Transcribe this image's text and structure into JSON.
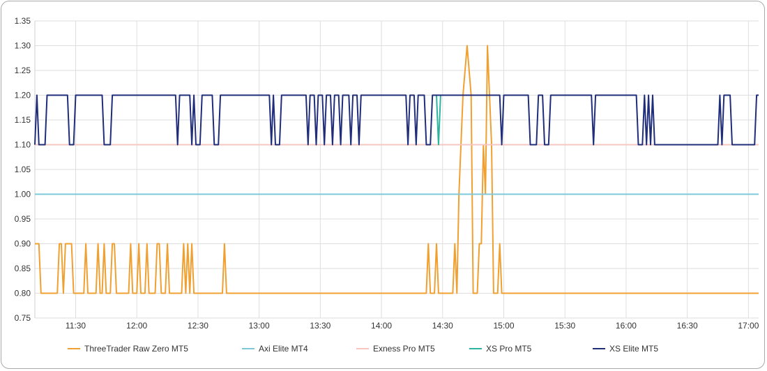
{
  "chart_data": {
    "type": "line",
    "title": "",
    "xlabel": "",
    "ylabel": "",
    "ylim": [
      0.75,
      1.35
    ],
    "yticks": [
      "0.75",
      "0.80",
      "0.85",
      "0.90",
      "0.95",
      "1.00",
      "1.05",
      "1.10",
      "1.15",
      "1.20",
      "1.25",
      "1.30",
      "1.35"
    ],
    "xticks": [
      "11:30",
      "12:00",
      "12:30",
      "13:00",
      "13:30",
      "14:00",
      "14:30",
      "15:00",
      "15:30",
      "16:00",
      "16:30",
      "17:00"
    ],
    "xrange": [
      "11:10",
      "17:05"
    ],
    "grid": true,
    "legend_position": "bottom",
    "series": [
      {
        "name": "ThreeTrader Raw Zero MT5",
        "color": "#f0a030",
        "points": [
          [
            "11:10",
            0.9
          ],
          [
            "11:12",
            0.9
          ],
          [
            "11:13",
            0.8
          ],
          [
            "11:21",
            0.8
          ],
          [
            "11:22",
            0.9
          ],
          [
            "11:23",
            0.9
          ],
          [
            "11:24",
            0.8
          ],
          [
            "11:25",
            0.9
          ],
          [
            "11:28",
            0.9
          ],
          [
            "11:29",
            0.8
          ],
          [
            "11:34",
            0.8
          ],
          [
            "11:35",
            0.9
          ],
          [
            "11:36",
            0.8
          ],
          [
            "11:40",
            0.8
          ],
          [
            "11:41",
            0.9
          ],
          [
            "11:42",
            0.8
          ],
          [
            "11:43",
            0.8
          ],
          [
            "11:44",
            0.9
          ],
          [
            "11:45",
            0.8
          ],
          [
            "11:47",
            0.8
          ],
          [
            "11:48",
            0.9
          ],
          [
            "11:49",
            0.9
          ],
          [
            "11:50",
            0.8
          ],
          [
            "11:56",
            0.8
          ],
          [
            "11:57",
            0.9
          ],
          [
            "11:58",
            0.8
          ],
          [
            "12:00",
            0.8
          ],
          [
            "12:01",
            0.9
          ],
          [
            "12:02",
            0.8
          ],
          [
            "12:04",
            0.8
          ],
          [
            "12:05",
            0.9
          ],
          [
            "12:06",
            0.8
          ],
          [
            "12:09",
            0.8
          ],
          [
            "12:10",
            0.9
          ],
          [
            "12:11",
            0.9
          ],
          [
            "12:12",
            0.8
          ],
          [
            "12:14",
            0.8
          ],
          [
            "12:15",
            0.9
          ],
          [
            "12:16",
            0.8
          ],
          [
            "12:22",
            0.8
          ],
          [
            "12:23",
            0.9
          ],
          [
            "12:24",
            0.8
          ],
          [
            "12:25",
            0.9
          ],
          [
            "12:26",
            0.8
          ],
          [
            "12:27",
            0.9
          ],
          [
            "12:28",
            0.8
          ],
          [
            "12:42",
            0.8
          ],
          [
            "12:43",
            0.9
          ],
          [
            "12:44",
            0.8
          ],
          [
            "14:22",
            0.8
          ],
          [
            "14:23",
            0.9
          ],
          [
            "14:24",
            0.8
          ],
          [
            "14:26",
            0.8
          ],
          [
            "14:27",
            0.9
          ],
          [
            "14:28",
            0.8
          ],
          [
            "14:35",
            0.8
          ],
          [
            "14:36",
            0.9
          ],
          [
            "14:37",
            0.8
          ],
          [
            "14:38",
            1.0
          ],
          [
            "14:40",
            1.2
          ],
          [
            "14:42",
            1.3
          ],
          [
            "14:44",
            1.2
          ],
          [
            "14:45",
            0.8
          ],
          [
            "14:47",
            0.8
          ],
          [
            "14:48",
            0.9
          ],
          [
            "14:49",
            0.9
          ],
          [
            "14:50",
            1.1
          ],
          [
            "14:51",
            1.0
          ],
          [
            "14:52",
            1.3
          ],
          [
            "14:54",
            1.1
          ],
          [
            "14:55",
            0.8
          ],
          [
            "14:57",
            0.8
          ],
          [
            "14:58",
            0.9
          ],
          [
            "14:59",
            0.8
          ],
          [
            "17:05",
            0.8
          ]
        ]
      },
      {
        "name": "Axi Elite MT4",
        "color": "#7ec8d8",
        "points": [
          [
            "11:10",
            1.0
          ],
          [
            "17:05",
            1.0
          ]
        ]
      },
      {
        "name": "Exness Pro MT5",
        "color": "#f6c6c0",
        "points": [
          [
            "11:10",
            1.1
          ],
          [
            "17:05",
            1.1
          ]
        ]
      },
      {
        "name": "XS Pro MT5",
        "color": "#2bb5a0",
        "points": [
          [
            "14:26",
            1.2
          ],
          [
            "14:27",
            1.2
          ],
          [
            "14:28",
            1.1
          ],
          [
            "14:29",
            1.2
          ],
          [
            "14:30",
            1.2
          ]
        ]
      },
      {
        "name": "XS Elite MT5",
        "color": "#1f2d7a",
        "points": [
          [
            "11:10",
            1.1
          ],
          [
            "11:11",
            1.2
          ],
          [
            "11:12",
            1.1
          ],
          [
            "11:15",
            1.1
          ],
          [
            "11:16",
            1.2
          ],
          [
            "11:26",
            1.2
          ],
          [
            "11:27",
            1.1
          ],
          [
            "11:29",
            1.1
          ],
          [
            "11:30",
            1.2
          ],
          [
            "11:43",
            1.2
          ],
          [
            "11:44",
            1.1
          ],
          [
            "11:47",
            1.1
          ],
          [
            "11:48",
            1.2
          ],
          [
            "12:19",
            1.2
          ],
          [
            "12:20",
            1.1
          ],
          [
            "12:21",
            1.2
          ],
          [
            "12:26",
            1.2
          ],
          [
            "12:27",
            1.1
          ],
          [
            "12:28",
            1.2
          ],
          [
            "12:29",
            1.1
          ],
          [
            "12:31",
            1.1
          ],
          [
            "12:32",
            1.2
          ],
          [
            "12:37",
            1.2
          ],
          [
            "12:38",
            1.1
          ],
          [
            "12:40",
            1.1
          ],
          [
            "12:41",
            1.2
          ],
          [
            "13:05",
            1.2
          ],
          [
            "13:06",
            1.1
          ],
          [
            "13:07",
            1.2
          ],
          [
            "13:08",
            1.1
          ],
          [
            "13:10",
            1.1
          ],
          [
            "13:11",
            1.2
          ],
          [
            "13:23",
            1.2
          ],
          [
            "13:24",
            1.1
          ],
          [
            "13:25",
            1.2
          ],
          [
            "13:27",
            1.2
          ],
          [
            "13:28",
            1.1
          ],
          [
            "13:29",
            1.2
          ],
          [
            "13:31",
            1.2
          ],
          [
            "13:32",
            1.1
          ],
          [
            "13:33",
            1.2
          ],
          [
            "13:35",
            1.2
          ],
          [
            "13:36",
            1.1
          ],
          [
            "13:37",
            1.2
          ],
          [
            "13:39",
            1.2
          ],
          [
            "13:40",
            1.1
          ],
          [
            "13:41",
            1.2
          ],
          [
            "13:44",
            1.2
          ],
          [
            "13:45",
            1.1
          ],
          [
            "13:46",
            1.2
          ],
          [
            "13:48",
            1.2
          ],
          [
            "13:49",
            1.1
          ],
          [
            "13:50",
            1.2
          ],
          [
            "14:12",
            1.2
          ],
          [
            "14:13",
            1.1
          ],
          [
            "14:14",
            1.2
          ],
          [
            "14:16",
            1.2
          ],
          [
            "14:17",
            1.1
          ],
          [
            "14:18",
            1.2
          ],
          [
            "14:21",
            1.2
          ],
          [
            "14:22",
            1.1
          ],
          [
            "14:24",
            1.1
          ],
          [
            "14:25",
            1.2
          ],
          [
            "14:58",
            1.2
          ],
          [
            "14:59",
            1.1
          ],
          [
            "15:00",
            1.2
          ],
          [
            "15:12",
            1.2
          ],
          [
            "15:13",
            1.1
          ],
          [
            "15:16",
            1.1
          ],
          [
            "15:17",
            1.2
          ],
          [
            "15:19",
            1.2
          ],
          [
            "15:20",
            1.1
          ],
          [
            "15:22",
            1.1
          ],
          [
            "15:23",
            1.2
          ],
          [
            "15:43",
            1.2
          ],
          [
            "15:44",
            1.1
          ],
          [
            "15:45",
            1.2
          ],
          [
            "16:05",
            1.2
          ],
          [
            "16:06",
            1.1
          ],
          [
            "16:08",
            1.1
          ],
          [
            "16:09",
            1.2
          ],
          [
            "16:10",
            1.1
          ],
          [
            "16:11",
            1.2
          ],
          [
            "16:12",
            1.1
          ],
          [
            "16:13",
            1.2
          ],
          [
            "16:14",
            1.1
          ],
          [
            "16:45",
            1.1
          ],
          [
            "16:46",
            1.2
          ],
          [
            "16:47",
            1.1
          ],
          [
            "16:48",
            1.2
          ],
          [
            "16:51",
            1.2
          ],
          [
            "16:52",
            1.1
          ],
          [
            "17:03",
            1.1
          ],
          [
            "17:04",
            1.2
          ],
          [
            "17:05",
            1.2
          ]
        ]
      }
    ]
  }
}
